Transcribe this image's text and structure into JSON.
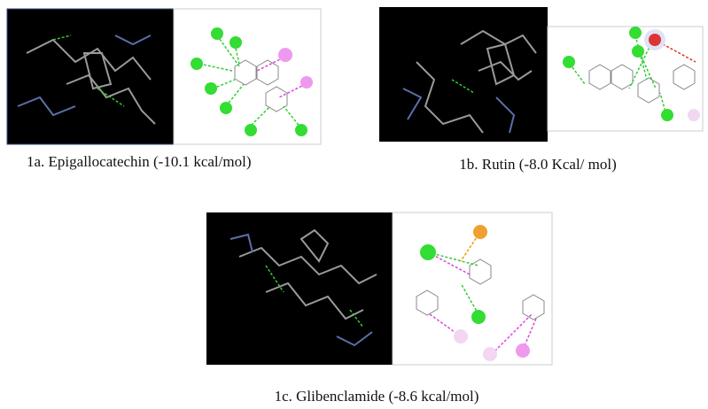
{
  "figures": [
    {
      "caption": "1a. Epigallocatechin  (-10.1 kcal/mol)"
    },
    {
      "caption": "1b. Rutin (-8.0 Kcal/ mol)"
    },
    {
      "caption": "1c. Glibenclamide  (-8.6 kcal/mol)"
    }
  ]
}
